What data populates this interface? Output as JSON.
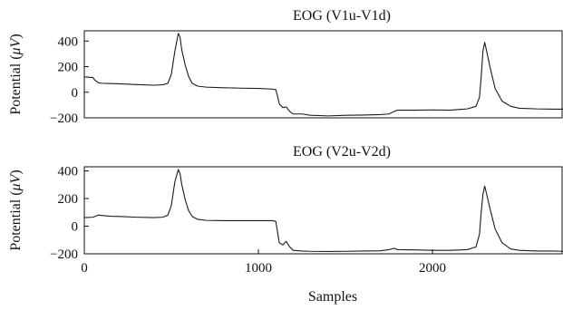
{
  "chart_data": [
    {
      "type": "line",
      "title": "EOG (V1u-V1d)",
      "ylabel_prefix": "Potential (",
      "ylabel_unit": "μV",
      "ylabel_suffix": ")",
      "xlabel": "",
      "xlim": [
        0,
        2750
      ],
      "ylim": [
        -200,
        480
      ],
      "xticks": [],
      "yticks": [
        -200,
        0,
        200,
        400
      ],
      "series": [
        {
          "x": [
            0,
            50,
            60,
            80,
            100,
            150,
            200,
            300,
            400,
            450,
            480,
            500,
            520,
            540,
            550,
            560,
            580,
            600,
            620,
            650,
            700,
            800,
            900,
            1000,
            1080,
            1100,
            1110,
            1120,
            1140,
            1160,
            1180,
            1200,
            1250,
            1300,
            1400,
            1500,
            1600,
            1700,
            1750,
            1780,
            1800,
            1900,
            2000,
            2100,
            2200,
            2250,
            2270,
            2280,
            2290,
            2300,
            2310,
            2330,
            2360,
            2400,
            2450,
            2500,
            2600,
            2700,
            2750
          ],
          "y": [
            120,
            115,
            95,
            75,
            70,
            68,
            66,
            60,
            55,
            58,
            70,
            140,
            320,
            460,
            430,
            330,
            210,
            120,
            70,
            48,
            40,
            35,
            32,
            30,
            25,
            20,
            -30,
            -90,
            -120,
            -115,
            -150,
            -170,
            -170,
            -180,
            -185,
            -180,
            -178,
            -175,
            -170,
            -150,
            -140,
            -140,
            -138,
            -140,
            -130,
            -110,
            -40,
            120,
            320,
            390,
            330,
            200,
            30,
            -70,
            -110,
            -125,
            -130,
            -132,
            -132
          ]
        }
      ]
    },
    {
      "type": "line",
      "title": "EOG (V2u-V2d)",
      "ylabel_prefix": "Potential (",
      "ylabel_unit": "μV",
      "ylabel_suffix": ")",
      "xlabel": "Samples",
      "xlim": [
        0,
        2750
      ],
      "ylim": [
        -200,
        430
      ],
      "xticks": [
        0,
        1000,
        2000
      ],
      "yticks": [
        -200,
        0,
        200,
        400
      ],
      "series": [
        {
          "x": [
            0,
            50,
            80,
            100,
            150,
            200,
            300,
            400,
            450,
            480,
            500,
            520,
            540,
            550,
            560,
            580,
            600,
            620,
            650,
            700,
            800,
            900,
            1000,
            1080,
            1100,
            1110,
            1120,
            1140,
            1160,
            1180,
            1200,
            1250,
            1300,
            1400,
            1500,
            1600,
            1700,
            1750,
            1780,
            1800,
            1900,
            2000,
            2100,
            2200,
            2250,
            2270,
            2280,
            2290,
            2300,
            2310,
            2330,
            2360,
            2400,
            2450,
            2500,
            2600,
            2700,
            2750
          ],
          "y": [
            62,
            65,
            80,
            78,
            72,
            70,
            65,
            62,
            65,
            80,
            150,
            320,
            410,
            380,
            300,
            190,
            110,
            70,
            50,
            42,
            40,
            40,
            40,
            40,
            35,
            -40,
            -120,
            -135,
            -110,
            -150,
            -175,
            -180,
            -182,
            -183,
            -182,
            -180,
            -178,
            -170,
            -160,
            -170,
            -172,
            -175,
            -175,
            -170,
            -150,
            -60,
            100,
            230,
            290,
            240,
            130,
            -20,
            -120,
            -165,
            -175,
            -180,
            -180,
            -182
          ]
        }
      ]
    }
  ]
}
